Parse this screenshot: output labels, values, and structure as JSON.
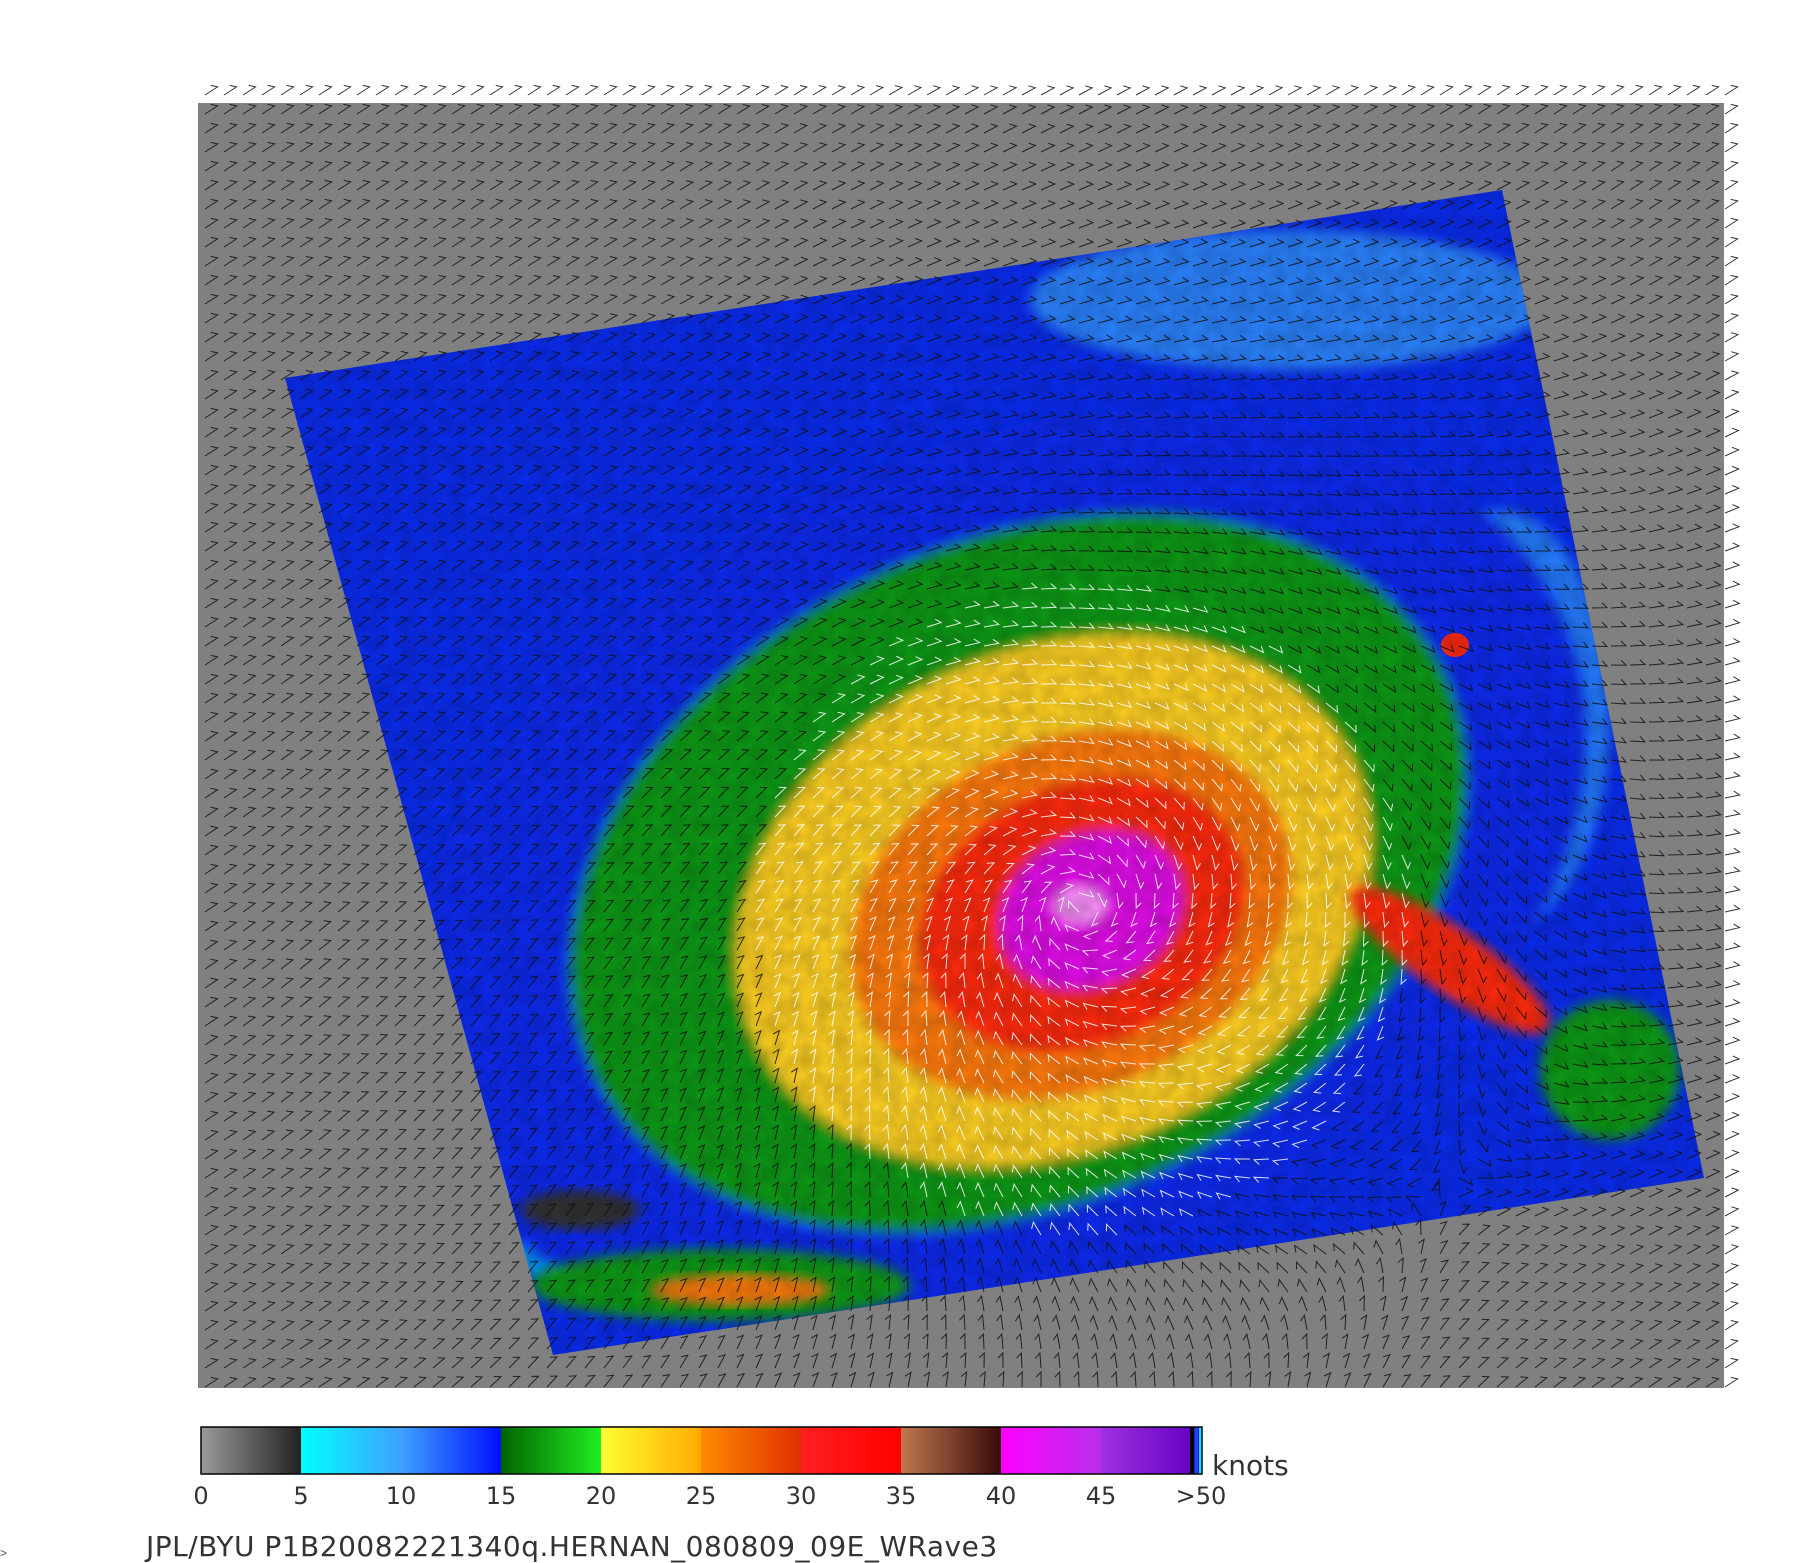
{
  "colors": {
    "background": "#ffffff",
    "no_data": "#808080",
    "wind_vector_low": "#111111",
    "wind_vector_high": "#ffffff"
  },
  "colorbar": {
    "units": "knots",
    "ticks": [
      "0",
      "5",
      "10",
      "15",
      "20",
      "25",
      "30",
      "35",
      "40",
      "45",
      ">50"
    ],
    "segments": [
      {
        "from": 0,
        "to": 5,
        "start": "#9a9a9a",
        "end": "#222222"
      },
      {
        "from": 5,
        "to": 10,
        "start": "#00ffff",
        "end": "#3fa0ff"
      },
      {
        "from": 10,
        "to": 15,
        "start": "#3fa0ff",
        "end": "#0010ff"
      },
      {
        "from": 15,
        "to": 20,
        "start": "#006400",
        "end": "#22ee22"
      },
      {
        "from": 20,
        "to": 25,
        "start": "#ffff33",
        "end": "#ffaa00"
      },
      {
        "from": 25,
        "to": 30,
        "start": "#ff8a00",
        "end": "#e03000"
      },
      {
        "from": 30,
        "to": 35,
        "start": "#ff2020",
        "end": "#ff0000"
      },
      {
        "from": 35,
        "to": 40,
        "start": "#c07850",
        "end": "#3a0a08"
      },
      {
        "from": 40,
        "to": 45,
        "start": "#ff00ff",
        "end": "#b830e8"
      },
      {
        "from": 45,
        "to": 50,
        "start": "#a030e0",
        "end": "#6000c0"
      }
    ]
  },
  "map": {
    "storm_name": "HERNAN",
    "wind_field_layers": [
      {
        "knots": 12,
        "color": "#0a2cf0"
      },
      {
        "knots": 17,
        "color": "#0e9a12"
      },
      {
        "knots": 22,
        "color": "#ffd020"
      },
      {
        "knots": 27,
        "color": "#ff7a10"
      },
      {
        "knots": 32,
        "color": "#ff2a10"
      },
      {
        "knots": 42,
        "color": "#e010e8"
      }
    ]
  },
  "caption": "JPL/BYU  P1B20082221340q.HERNAN_080809_09E_WRave3"
}
